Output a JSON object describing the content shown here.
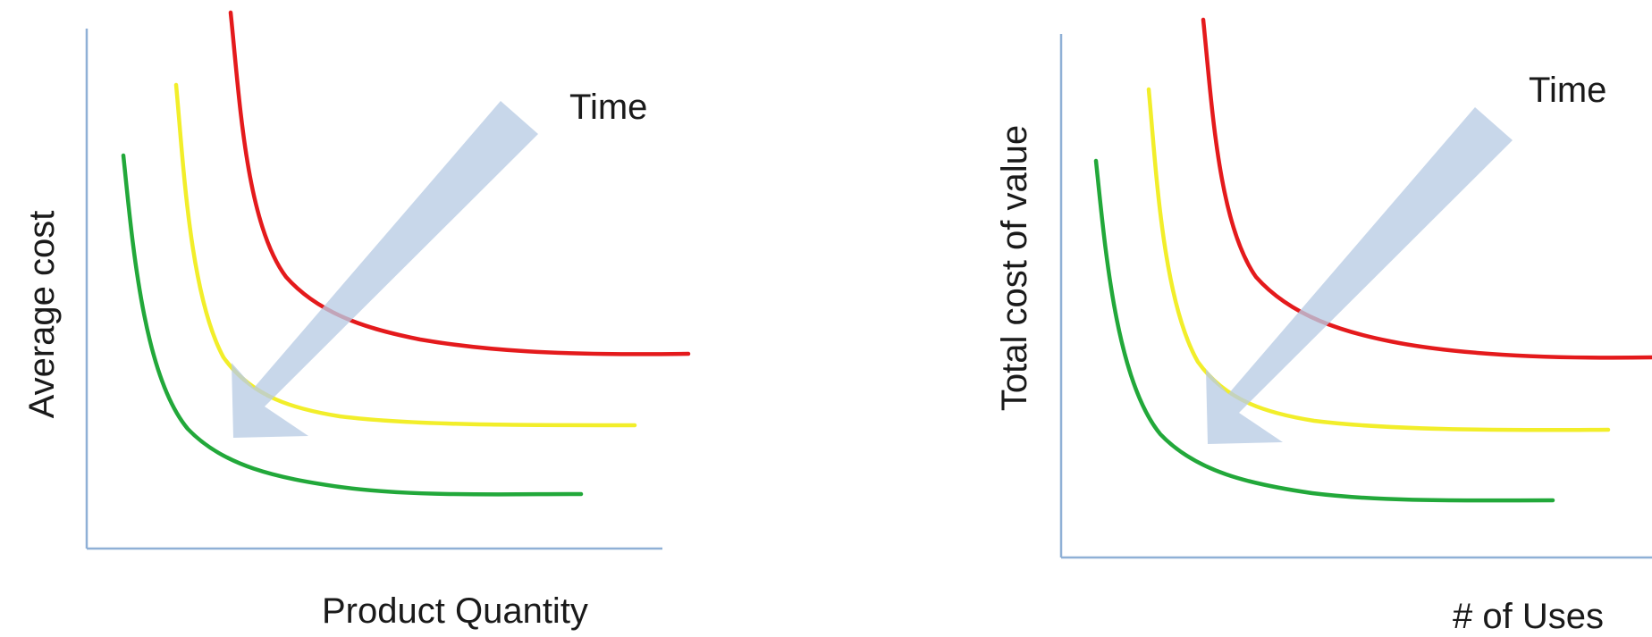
{
  "colors": {
    "axis": "#8fb0d6",
    "arrow": "#b8cce4",
    "label": "#1a1a1a",
    "curve_red": "#e41a1c",
    "curve_yellow": "#f2ee2a",
    "curve_green": "#22a83a"
  },
  "panels": [
    {
      "x_axis_label": "Product Quantity",
      "y_axis_label": "Average cost",
      "arrow_label": "Time"
    },
    {
      "x_axis_label": "# of Uses",
      "y_axis_label": "Total cost of value",
      "arrow_label": "Time"
    }
  ]
}
